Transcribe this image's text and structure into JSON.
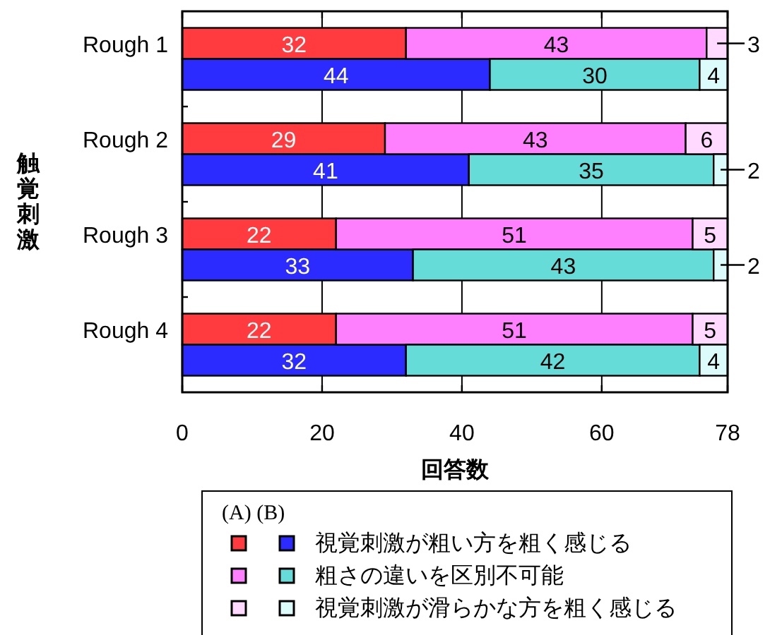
{
  "chart_data": {
    "type": "bar",
    "orientation": "horizontal",
    "stacked": true,
    "categories": [
      "Rough 1",
      null,
      "Rough 2",
      null,
      "Rough 3",
      null,
      "Rough 4",
      null
    ],
    "series": [
      {
        "name": "視覚刺激が粗い方を粗く感じる",
        "colors": [
          "#ff3b3f",
          "#2b2bff",
          "#ff3b3f",
          "#2b2bff",
          "#ff3b3f",
          "#2b2bff",
          "#ff3b3f",
          "#2b2bff"
        ],
        "values": [
          32,
          44,
          29,
          41,
          22,
          33,
          22,
          32
        ]
      },
      {
        "name": "粗さの違いを区別不可能",
        "colors": [
          "#ff80ff",
          "#66dcd8",
          "#ff80ff",
          "#66dcd8",
          "#ff80ff",
          "#66dcd8",
          "#ff80ff",
          "#66dcd8"
        ],
        "values": [
          43,
          30,
          43,
          35,
          51,
          43,
          51,
          42
        ]
      },
      {
        "name": "視覚刺激が滑らかな方を粗く感じる",
        "colors": [
          "#ffd9ff",
          "#dcfcfc",
          "#ffd9ff",
          "#dcfcfc",
          "#ffd9ff",
          "#dcfcfc",
          "#ffd9ff",
          "#dcfcfc"
        ],
        "values": [
          3,
          4,
          6,
          2,
          5,
          2,
          5,
          4
        ]
      }
    ],
    "xlim": [
      0,
      78
    ],
    "xticks": [
      0,
      20,
      40,
      60,
      78
    ],
    "xlabel": "回答数",
    "ylabel": "触覚刺激",
    "grid": "x",
    "data_labels": true,
    "legend": "bottom",
    "legend_title": "(A)  (B)"
  }
}
